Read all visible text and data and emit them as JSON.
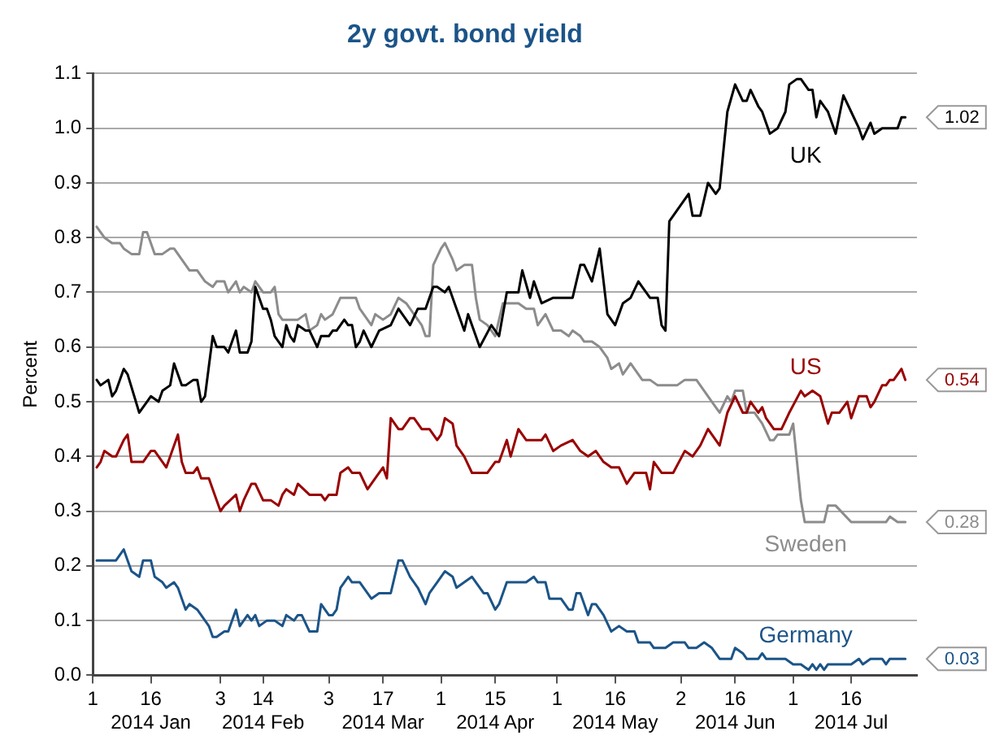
{
  "chart_data": {
    "type": "line",
    "title": "2y govt. bond yield",
    "ylabel": "Percent",
    "xlim": [
      "2014-01-01",
      "2014-08-02"
    ],
    "xticks": [
      {
        "value": "2014-01-01",
        "label": "1"
      },
      {
        "value": "2014-01-16",
        "label": "16\n2014 Jan"
      },
      {
        "value": "2014-02-03",
        "label": "3"
      },
      {
        "value": "2014-02-14",
        "label": "14\n2014 Feb"
      },
      {
        "value": "2014-03-03",
        "label": "3"
      },
      {
        "value": "2014-03-17",
        "label": "17\n2014 Mar"
      },
      {
        "value": "2014-04-01",
        "label": "1"
      },
      {
        "value": "2014-04-15",
        "label": "15\n2014 Apr"
      },
      {
        "value": "2014-05-01",
        "label": "1"
      },
      {
        "value": "2014-05-16",
        "label": "16\n2014 May"
      },
      {
        "value": "2014-06-02",
        "label": "2"
      },
      {
        "value": "2014-06-16",
        "label": "16\n2014 Jun"
      },
      {
        "value": "2014-07-01",
        "label": "1"
      },
      {
        "value": "2014-07-16",
        "label": "16\n2014 Jul"
      }
    ],
    "ylim": [
      0,
      1.1
    ],
    "yticks": [
      {
        "value": 0,
        "label": "0.0"
      },
      0.1,
      0.2,
      0.3,
      0.4,
      0.5,
      0.6,
      0.7,
      0.8,
      0.9,
      {
        "value": 1,
        "label": "1.0"
      },
      1.1
    ],
    "grid": "y",
    "legend": false,
    "marker": "none",
    "line_style": "solid",
    "annotations": [
      {
        "text": "1.02",
        "x": "2014-07-30",
        "y": 1.02
      },
      {
        "text": "0.54",
        "x": "2014-07-30",
        "y": 0.54
      },
      {
        "text": "0.28",
        "x": "2014-07-30",
        "y": 0.28
      },
      {
        "text": "0.03",
        "x": "2014-07-30",
        "y": 0.03
      }
    ],
    "series": [
      {
        "name": "UK",
        "color": "#000000",
        "x": [
          "2014-01-02",
          "2014-01-03",
          "2014-01-05",
          "2014-01-06",
          "2014-01-07",
          "2014-01-09",
          "2014-01-10",
          "2014-01-13",
          "2014-01-15",
          "2014-01-16",
          "2014-01-18",
          "2014-01-19",
          "2014-01-21",
          "2014-01-22",
          "2014-01-24",
          "2014-01-25",
          "2014-01-27",
          "2014-01-28",
          "2014-01-29",
          "2014-01-30",
          "2014-02-01",
          "2014-02-02",
          "2014-02-04",
          "2014-02-05",
          "2014-02-07",
          "2014-02-08",
          "2014-02-10",
          "2014-02-11",
          "2014-02-12",
          "2014-02-14",
          "2014-02-15",
          "2014-02-16",
          "2014-02-17",
          "2014-02-19",
          "2014-02-20",
          "2014-02-21",
          "2014-02-22",
          "2014-02-23",
          "2014-02-25",
          "2014-02-26",
          "2014-02-28",
          "2014-03-01",
          "2014-03-03",
          "2014-03-04",
          "2014-03-05",
          "2014-03-07",
          "2014-03-08",
          "2014-03-09",
          "2014-03-10",
          "2014-03-11",
          "2014-03-12",
          "2014-03-14",
          "2014-03-16",
          "2014-03-19",
          "2014-03-21",
          "2014-03-24",
          "2014-03-26",
          "2014-03-28",
          "2014-03-30",
          "2014-03-31",
          "2014-04-02",
          "2014-04-03",
          "2014-04-05",
          "2014-04-07",
          "2014-04-08",
          "2014-04-11",
          "2014-04-14",
          "2014-04-16",
          "2014-04-18",
          "2014-04-21",
          "2014-04-22",
          "2014-04-24",
          "2014-04-25",
          "2014-04-27",
          "2014-04-30",
          "2014-05-05",
          "2014-05-07",
          "2014-05-08",
          "2014-05-10",
          "2014-05-12",
          "2014-05-14",
          "2014-05-16",
          "2014-05-18",
          "2014-05-20",
          "2014-05-22",
          "2014-05-23",
          "2014-05-25",
          "2014-05-27",
          "2014-05-28",
          "2014-05-29",
          "2014-05-30",
          "2014-06-01",
          "2014-06-02",
          "2014-06-04",
          "2014-06-05",
          "2014-06-07",
          "2014-06-09",
          "2014-06-11",
          "2014-06-12",
          "2014-06-14",
          "2014-06-16",
          "2014-06-18",
          "2014-06-19",
          "2014-06-20",
          "2014-06-22",
          "2014-06-23",
          "2014-06-25",
          "2014-06-27",
          "2014-06-29",
          "2014-06-30",
          "2014-07-02",
          "2014-07-03",
          "2014-07-05",
          "2014-07-06",
          "2014-07-07",
          "2014-07-08",
          "2014-07-10",
          "2014-07-12",
          "2014-07-14",
          "2014-07-16",
          "2014-07-18",
          "2014-07-19",
          "2014-07-21",
          "2014-07-22",
          "2014-07-24",
          "2014-07-28",
          "2014-07-29",
          "2014-07-30"
        ],
        "values": [
          0.54,
          0.53,
          0.54,
          0.51,
          0.52,
          0.56,
          0.55,
          0.48,
          0.5,
          0.51,
          0.5,
          0.52,
          0.53,
          0.57,
          0.53,
          0.53,
          0.54,
          0.54,
          0.5,
          0.51,
          0.62,
          0.6,
          0.6,
          0.59,
          0.63,
          0.59,
          0.59,
          0.61,
          0.71,
          0.67,
          0.67,
          0.65,
          0.62,
          0.6,
          0.64,
          0.62,
          0.61,
          0.64,
          0.63,
          0.63,
          0.6,
          0.62,
          0.62,
          0.63,
          0.63,
          0.65,
          0.64,
          0.64,
          0.6,
          0.61,
          0.63,
          0.6,
          0.63,
          0.64,
          0.67,
          0.64,
          0.67,
          0.67,
          0.71,
          0.71,
          0.7,
          0.71,
          0.67,
          0.63,
          0.66,
          0.6,
          0.64,
          0.62,
          0.7,
          0.7,
          0.74,
          0.69,
          0.72,
          0.68,
          0.69,
          0.69,
          0.75,
          0.75,
          0.72,
          0.78,
          0.66,
          0.64,
          0.68,
          0.69,
          0.72,
          0.71,
          0.69,
          0.69,
          0.64,
          0.63,
          0.83,
          0.85,
          0.86,
          0.88,
          0.84,
          0.84,
          0.9,
          0.88,
          0.89,
          1.03,
          1.08,
          1.05,
          1.05,
          1.07,
          1.04,
          1.03,
          0.99,
          1.0,
          1.03,
          1.08,
          1.09,
          1.09,
          1.07,
          1.07,
          1.02,
          1.05,
          1.03,
          0.99,
          1.06,
          1.03,
          1.0,
          0.98,
          1.01,
          0.99,
          1.0,
          1.0,
          1.02,
          1.02
        ]
      },
      {
        "name": "US",
        "color": "#990000",
        "x": [
          "2014-01-02",
          "2014-01-03",
          "2014-01-04",
          "2014-01-06",
          "2014-01-07",
          "2014-01-09",
          "2014-01-10",
          "2014-01-11",
          "2014-01-14",
          "2014-01-16",
          "2014-01-17",
          "2014-01-18",
          "2014-01-20",
          "2014-01-21",
          "2014-01-23",
          "2014-01-24",
          "2014-01-25",
          "2014-01-27",
          "2014-01-28",
          "2014-01-29",
          "2014-01-31",
          "2014-02-01",
          "2014-02-03",
          "2014-02-04",
          "2014-02-07",
          "2014-02-08",
          "2014-02-09",
          "2014-02-11",
          "2014-02-12",
          "2014-02-14",
          "2014-02-16",
          "2014-02-18",
          "2014-02-19",
          "2014-02-20",
          "2014-02-22",
          "2014-02-23",
          "2014-02-26",
          "2014-03-01",
          "2014-03-02",
          "2014-03-03",
          "2014-03-05",
          "2014-03-06",
          "2014-03-08",
          "2014-03-09",
          "2014-03-11",
          "2014-03-13",
          "2014-03-15",
          "2014-03-17",
          "2014-03-18",
          "2014-03-19",
          "2014-03-21",
          "2014-03-22",
          "2014-03-24",
          "2014-03-25",
          "2014-03-27",
          "2014-03-29",
          "2014-03-31",
          "2014-04-01",
          "2014-04-02",
          "2014-04-04",
          "2014-04-05",
          "2014-04-07",
          "2014-04-09",
          "2014-04-13",
          "2014-04-15",
          "2014-04-16",
          "2014-04-18",
          "2014-04-19",
          "2014-04-21",
          "2014-04-23",
          "2014-04-27",
          "2014-04-28",
          "2014-04-30",
          "2014-05-02",
          "2014-05-05",
          "2014-05-07",
          "2014-05-09",
          "2014-05-11",
          "2014-05-13",
          "2014-05-15",
          "2014-05-17",
          "2014-05-19",
          "2014-05-21",
          "2014-05-24",
          "2014-05-25",
          "2014-05-26",
          "2014-05-28",
          "2014-05-31",
          "2014-06-03",
          "2014-06-05",
          "2014-06-07",
          "2014-06-09",
          "2014-06-10",
          "2014-06-12",
          "2014-06-14",
          "2014-06-16",
          "2014-06-18",
          "2014-06-19",
          "2014-06-20",
          "2014-06-22",
          "2014-06-23",
          "2014-06-24",
          "2014-06-26",
          "2014-06-28",
          "2014-06-30",
          "2014-07-03",
          "2014-07-04",
          "2014-07-06",
          "2014-07-08",
          "2014-07-10",
          "2014-07-11",
          "2014-07-13",
          "2014-07-15",
          "2014-07-16",
          "2014-07-18",
          "2014-07-20",
          "2014-07-21",
          "2014-07-22",
          "2014-07-24",
          "2014-07-25",
          "2014-07-26",
          "2014-07-27",
          "2014-07-29",
          "2014-07-30"
        ],
        "values": [
          0.38,
          0.39,
          0.41,
          0.4,
          0.4,
          0.43,
          0.44,
          0.39,
          0.39,
          0.41,
          0.41,
          0.4,
          0.38,
          0.4,
          0.44,
          0.39,
          0.37,
          0.37,
          0.38,
          0.36,
          0.36,
          0.34,
          0.3,
          0.31,
          0.33,
          0.3,
          0.32,
          0.35,
          0.35,
          0.32,
          0.32,
          0.31,
          0.33,
          0.34,
          0.33,
          0.35,
          0.33,
          0.33,
          0.32,
          0.33,
          0.33,
          0.37,
          0.38,
          0.37,
          0.37,
          0.34,
          0.36,
          0.38,
          0.36,
          0.47,
          0.45,
          0.45,
          0.47,
          0.47,
          0.45,
          0.45,
          0.43,
          0.44,
          0.47,
          0.46,
          0.42,
          0.4,
          0.37,
          0.37,
          0.39,
          0.39,
          0.43,
          0.4,
          0.45,
          0.43,
          0.43,
          0.44,
          0.41,
          0.42,
          0.43,
          0.41,
          0.4,
          0.41,
          0.39,
          0.38,
          0.38,
          0.35,
          0.37,
          0.37,
          0.34,
          0.39,
          0.37,
          0.37,
          0.41,
          0.4,
          0.42,
          0.45,
          0.44,
          0.42,
          0.48,
          0.51,
          0.48,
          0.48,
          0.5,
          0.48,
          0.49,
          0.47,
          0.45,
          0.45,
          0.48,
          0.52,
          0.51,
          0.52,
          0.51,
          0.46,
          0.48,
          0.48,
          0.5,
          0.47,
          0.51,
          0.51,
          0.49,
          0.5,
          0.53,
          0.53,
          0.54,
          0.54,
          0.56,
          0.54
        ]
      },
      {
        "name": "Sweden",
        "color": "#8c8c8c",
        "x": [
          "2014-01-02",
          "2014-01-04",
          "2014-01-06",
          "2014-01-08",
          "2014-01-09",
          "2014-01-11",
          "2014-01-13",
          "2014-01-14",
          "2014-01-15",
          "2014-01-17",
          "2014-01-19",
          "2014-01-21",
          "2014-01-22",
          "2014-01-24",
          "2014-01-26",
          "2014-01-28",
          "2014-01-30",
          "2014-02-01",
          "2014-02-02",
          "2014-02-04",
          "2014-02-05",
          "2014-02-07",
          "2014-02-08",
          "2014-02-09",
          "2014-02-11",
          "2014-02-12",
          "2014-02-14",
          "2014-02-16",
          "2014-02-17",
          "2014-02-18",
          "2014-02-19",
          "2014-02-21",
          "2014-02-23",
          "2014-02-25",
          "2014-02-26",
          "2014-02-28",
          "2014-03-01",
          "2014-03-02",
          "2014-03-04",
          "2014-03-06",
          "2014-03-08",
          "2014-03-10",
          "2014-03-11",
          "2014-03-14",
          "2014-03-15",
          "2014-03-17",
          "2014-03-19",
          "2014-03-21",
          "2014-03-23",
          "2014-03-25",
          "2014-03-27",
          "2014-03-28",
          "2014-03-29",
          "2014-03-30",
          "2014-04-01",
          "2014-04-02",
          "2014-04-04",
          "2014-04-05",
          "2014-04-07",
          "2014-04-09",
          "2014-04-10",
          "2014-04-11",
          "2014-04-13",
          "2014-04-15",
          "2014-04-17",
          "2014-04-19",
          "2014-04-21",
          "2014-04-23",
          "2014-04-25",
          "2014-04-26",
          "2014-04-28",
          "2014-04-30",
          "2014-05-02",
          "2014-05-04",
          "2014-05-05",
          "2014-05-07",
          "2014-05-08",
          "2014-05-10",
          "2014-05-12",
          "2014-05-14",
          "2014-05-15",
          "2014-05-17",
          "2014-05-18",
          "2014-05-20",
          "2014-05-21",
          "2014-05-23",
          "2014-05-25",
          "2014-05-27",
          "2014-06-01",
          "2014-06-03",
          "2014-06-06",
          "2014-06-09",
          "2014-06-10",
          "2014-06-12",
          "2014-06-14",
          "2014-06-15",
          "2014-06-16",
          "2014-06-18",
          "2014-06-19",
          "2014-06-21",
          "2014-06-23",
          "2014-06-25",
          "2014-06-26",
          "2014-06-27",
          "2014-06-30",
          "2014-07-01",
          "2014-07-03",
          "2014-07-04",
          "2014-07-09",
          "2014-07-10",
          "2014-07-12",
          "2014-07-16",
          "2014-07-25",
          "2014-07-26",
          "2014-07-28",
          "2014-07-30"
        ],
        "values": [
          0.82,
          0.8,
          0.79,
          0.79,
          0.78,
          0.77,
          0.77,
          0.81,
          0.81,
          0.77,
          0.77,
          0.78,
          0.78,
          0.76,
          0.74,
          0.74,
          0.72,
          0.71,
          0.72,
          0.72,
          0.7,
          0.72,
          0.7,
          0.71,
          0.7,
          0.72,
          0.7,
          0.7,
          0.71,
          0.66,
          0.65,
          0.65,
          0.65,
          0.66,
          0.63,
          0.64,
          0.66,
          0.65,
          0.66,
          0.69,
          0.69,
          0.69,
          0.67,
          0.64,
          0.66,
          0.65,
          0.66,
          0.69,
          0.68,
          0.66,
          0.64,
          0.62,
          0.62,
          0.75,
          0.78,
          0.79,
          0.76,
          0.74,
          0.75,
          0.75,
          0.69,
          0.65,
          0.64,
          0.62,
          0.68,
          0.68,
          0.68,
          0.67,
          0.67,
          0.64,
          0.66,
          0.63,
          0.63,
          0.62,
          0.63,
          0.62,
          0.61,
          0.61,
          0.6,
          0.58,
          0.56,
          0.57,
          0.55,
          0.57,
          0.56,
          0.54,
          0.54,
          0.53,
          0.53,
          0.54,
          0.54,
          0.51,
          0.5,
          0.48,
          0.51,
          0.5,
          0.52,
          0.52,
          0.48,
          0.48,
          0.46,
          0.43,
          0.43,
          0.44,
          0.44,
          0.46,
          0.32,
          0.28,
          0.28,
          0.31,
          0.31,
          0.28,
          0.28,
          0.29,
          0.28,
          0.28
        ]
      },
      {
        "name": "Germany",
        "color": "#1b5488",
        "x": [
          "2014-01-02",
          "2014-01-07",
          "2014-01-09",
          "2014-01-10",
          "2014-01-11",
          "2014-01-13",
          "2014-01-14",
          "2014-01-16",
          "2014-01-17",
          "2014-01-19",
          "2014-01-20",
          "2014-01-22",
          "2014-01-23",
          "2014-01-25",
          "2014-01-26",
          "2014-01-28",
          "2014-01-29",
          "2014-01-31",
          "2014-02-01",
          "2014-02-02",
          "2014-02-04",
          "2014-02-05",
          "2014-02-07",
          "2014-02-08",
          "2014-02-10",
          "2014-02-11",
          "2014-02-12",
          "2014-02-13",
          "2014-02-15",
          "2014-02-17",
          "2014-02-19",
          "2014-02-20",
          "2014-02-22",
          "2014-02-23",
          "2014-02-24",
          "2014-02-26",
          "2014-02-28",
          "2014-03-01",
          "2014-03-03",
          "2014-03-04",
          "2014-03-05",
          "2014-03-06",
          "2014-03-08",
          "2014-03-09",
          "2014-03-11",
          "2014-03-14",
          "2014-03-16",
          "2014-03-19",
          "2014-03-20",
          "2014-03-21",
          "2014-03-22",
          "2014-03-24",
          "2014-03-26",
          "2014-03-28",
          "2014-03-29",
          "2014-03-31",
          "2014-04-02",
          "2014-04-04",
          "2014-04-05",
          "2014-04-07",
          "2014-04-09",
          "2014-04-12",
          "2014-04-13",
          "2014-04-15",
          "2014-04-16",
          "2014-04-18",
          "2014-04-23",
          "2014-04-25",
          "2014-04-26",
          "2014-04-28",
          "2014-04-29",
          "2014-05-02",
          "2014-05-04",
          "2014-05-05",
          "2014-05-06",
          "2014-05-07",
          "2014-05-09",
          "2014-05-10",
          "2014-05-11",
          "2014-05-13",
          "2014-05-15",
          "2014-05-17",
          "2014-05-19",
          "2014-05-21",
          "2014-05-22",
          "2014-05-25",
          "2014-05-26",
          "2014-05-29",
          "2014-05-31",
          "2014-06-03",
          "2014-06-04",
          "2014-06-06",
          "2014-06-08",
          "2014-06-10",
          "2014-06-12",
          "2014-06-15",
          "2014-06-16",
          "2014-06-18",
          "2014-06-19",
          "2014-06-22",
          "2014-06-23",
          "2014-06-24",
          "2014-06-29",
          "2014-07-01",
          "2014-07-03",
          "2014-07-05",
          "2014-07-06",
          "2014-07-07",
          "2014-07-08",
          "2014-07-09",
          "2014-07-10",
          "2014-07-16",
          "2014-07-18",
          "2014-07-19",
          "2014-07-21",
          "2014-07-24",
          "2014-07-25",
          "2014-07-26",
          "2014-07-30"
        ],
        "values": [
          0.21,
          0.21,
          0.23,
          0.21,
          0.19,
          0.18,
          0.21,
          0.21,
          0.18,
          0.17,
          0.16,
          0.17,
          0.16,
          0.12,
          0.13,
          0.12,
          0.11,
          0.09,
          0.07,
          0.07,
          0.08,
          0.08,
          0.12,
          0.09,
          0.11,
          0.1,
          0.11,
          0.09,
          0.1,
          0.1,
          0.09,
          0.11,
          0.1,
          0.11,
          0.11,
          0.08,
          0.08,
          0.13,
          0.11,
          0.11,
          0.12,
          0.16,
          0.18,
          0.17,
          0.17,
          0.14,
          0.15,
          0.15,
          0.18,
          0.21,
          0.21,
          0.18,
          0.16,
          0.13,
          0.15,
          0.17,
          0.19,
          0.18,
          0.16,
          0.17,
          0.18,
          0.15,
          0.15,
          0.12,
          0.13,
          0.17,
          0.17,
          0.18,
          0.17,
          0.17,
          0.14,
          0.14,
          0.12,
          0.12,
          0.15,
          0.15,
          0.11,
          0.13,
          0.13,
          0.11,
          0.08,
          0.09,
          0.08,
          0.08,
          0.06,
          0.06,
          0.05,
          0.05,
          0.06,
          0.06,
          0.05,
          0.05,
          0.06,
          0.05,
          0.03,
          0.03,
          0.05,
          0.04,
          0.03,
          0.03,
          0.04,
          0.03,
          0.03,
          0.02,
          0.02,
          0.01,
          0.02,
          0.01,
          0.02,
          0.01,
          0.02,
          0.02,
          0.03,
          0.02,
          0.03,
          0.03,
          0.02,
          0.03,
          0.03
        ]
      }
    ]
  }
}
